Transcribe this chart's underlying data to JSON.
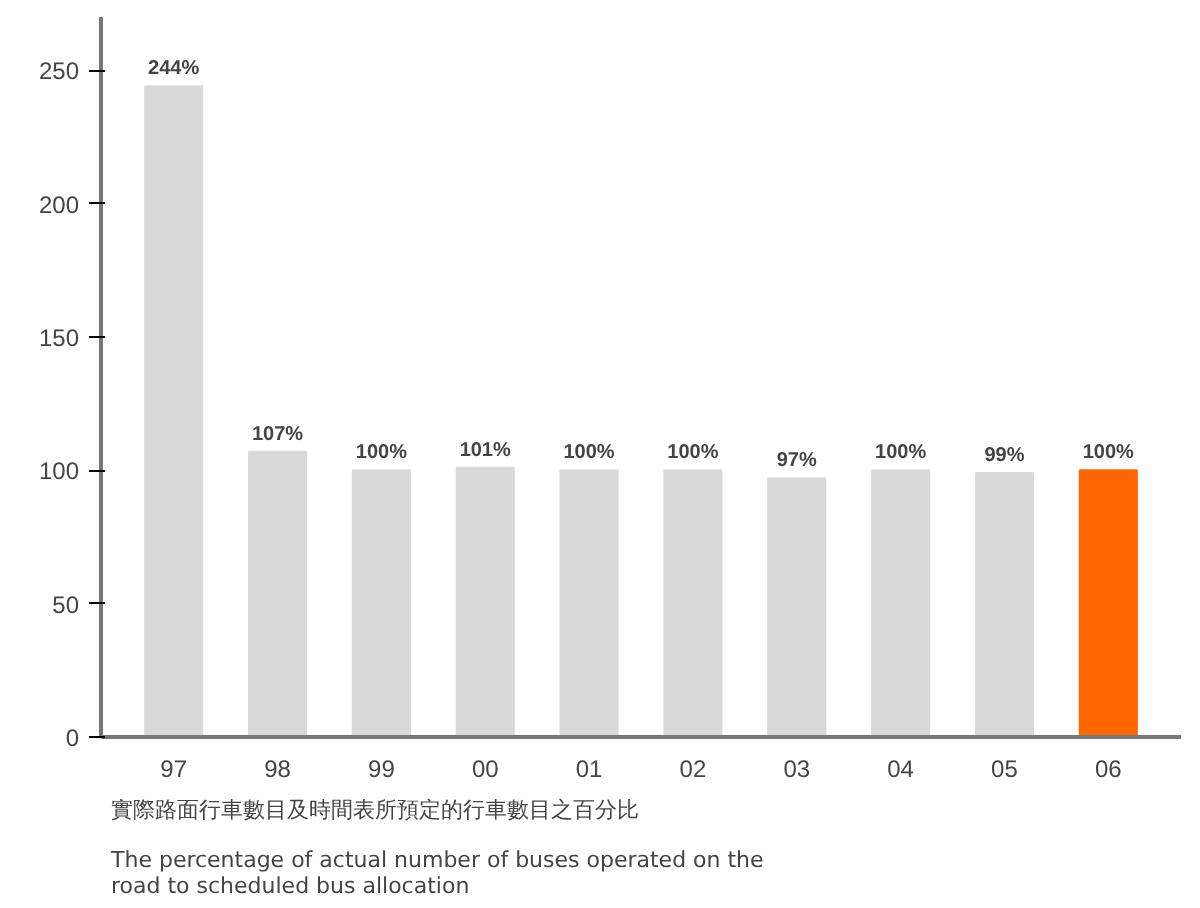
{
  "chart_data": {
    "type": "bar",
    "categories": [
      "97",
      "98",
      "99",
      "00",
      "01",
      "02",
      "03",
      "04",
      "05",
      "06"
    ],
    "values": [
      244,
      107,
      100,
      101,
      100,
      100,
      97,
      100,
      99,
      100
    ],
    "value_labels": [
      "244%",
      "107%",
      "100%",
      "101%",
      "100%",
      "100%",
      "97%",
      "100%",
      "99%",
      "100%"
    ],
    "colors": [
      "#d9d9d9",
      "#d9d9d9",
      "#d9d9d9",
      "#d9d9d9",
      "#d9d9d9",
      "#d9d9d9",
      "#d9d9d9",
      "#d9d9d9",
      "#d9d9d9",
      "#ff6600"
    ],
    "ylim": [
      0,
      270
    ],
    "yticks": [
      0,
      50,
      100,
      150,
      200,
      250
    ],
    "grid": false,
    "annotations": [
      "實際路面行車數目及時間表所預定的行車數目之百分比",
      "The percentage of actual number of buses operated on the road to scheduled bus allocation"
    ]
  }
}
